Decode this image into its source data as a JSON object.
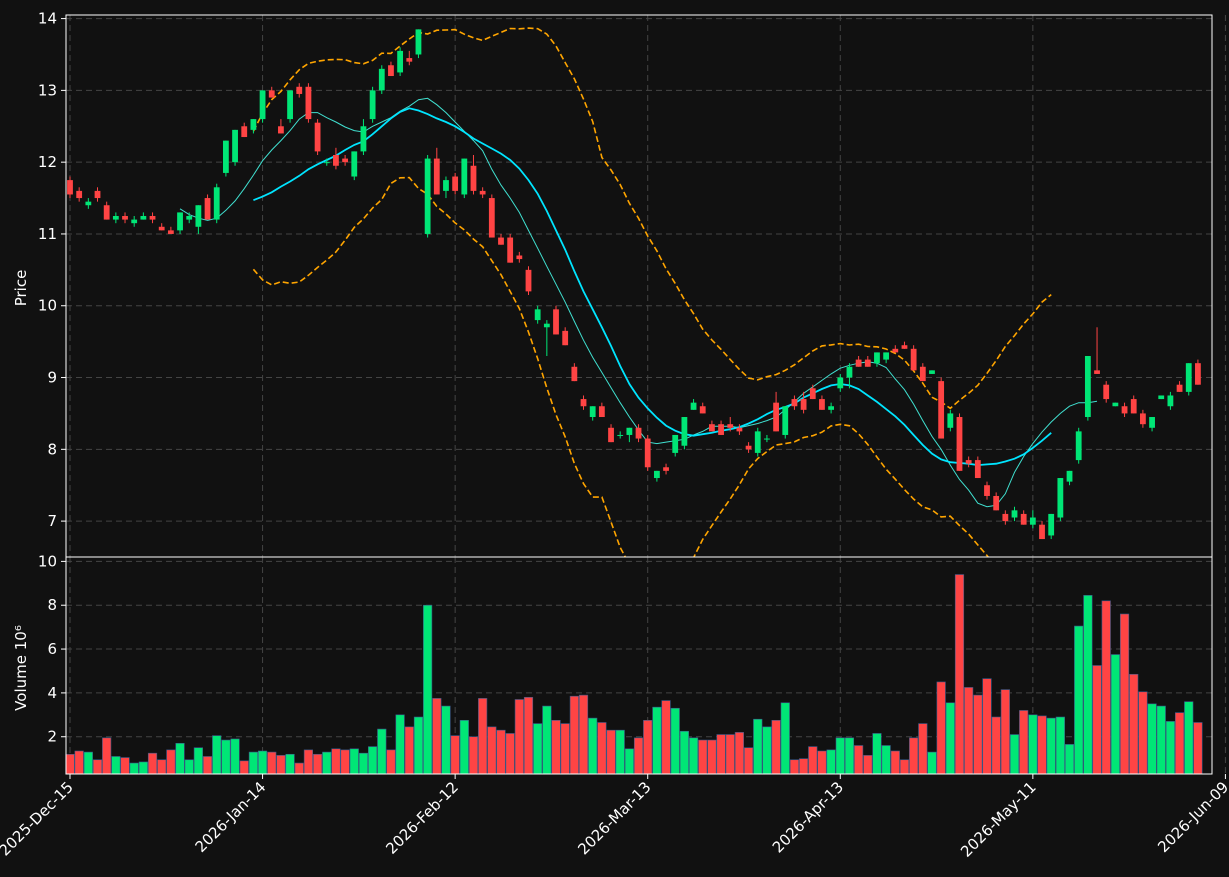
{
  "chart_data": {
    "type": "candlestick",
    "colors": {
      "background": "#111111",
      "up": "#00e676",
      "down": "#ff4444",
      "ma_fast": "#40e0d0",
      "ma_slow": "#00e5ff",
      "bands": "#ffa500",
      "grid": "#444444",
      "axis": "#ffffff"
    },
    "price_panel": {
      "ylabel": "Price",
      "ylim": [
        6.5,
        14.05
      ],
      "yticks": [
        7,
        8,
        9,
        10,
        11,
        12,
        13,
        14
      ],
      "grid": true
    },
    "volume_panel": {
      "ylabel": "Volume  10⁶",
      "ylim": [
        0.3,
        10.2
      ],
      "yticks": [
        2,
        4,
        6,
        8,
        10
      ],
      "grid": true
    },
    "x": {
      "start_date": "2025-12-15",
      "end_date": "2026-06-09",
      "tick_labels": [
        "2025-Dec-15",
        "2026-Jan-14",
        "2026-Feb-12",
        "2026-Mar-13",
        "2026-Apr-13",
        "2026-May-11",
        "2026-Jun-09"
      ],
      "tick_indices": [
        0,
        21,
        42,
        63,
        84,
        105,
        126
      ]
    },
    "candles": [
      [
        11.75,
        11.8,
        11.5,
        11.55,
        1.2
      ],
      [
        11.6,
        11.65,
        11.45,
        11.5,
        1.35
      ],
      [
        11.4,
        11.5,
        11.35,
        11.45,
        1.3
      ],
      [
        11.6,
        11.65,
        11.45,
        11.5,
        0.95
      ],
      [
        11.4,
        11.45,
        11.2,
        11.2,
        1.95
      ],
      [
        11.2,
        11.3,
        11.15,
        11.25,
        1.1
      ],
      [
        11.25,
        11.3,
        11.15,
        11.2,
        1.05
      ],
      [
        11.15,
        11.25,
        11.1,
        11.2,
        0.8
      ],
      [
        11.2,
        11.3,
        11.2,
        11.25,
        0.85
      ],
      [
        11.25,
        11.3,
        11.15,
        11.2,
        1.25
      ],
      [
        11.1,
        11.15,
        11.05,
        11.05,
        0.95
      ],
      [
        11.05,
        11.1,
        11.0,
        11.0,
        1.4
      ],
      [
        11.05,
        11.3,
        11.0,
        11.3,
        1.7
      ],
      [
        11.2,
        11.3,
        11.15,
        11.25,
        0.95
      ],
      [
        11.1,
        11.4,
        11.0,
        11.4,
        1.5
      ],
      [
        11.5,
        11.55,
        11.2,
        11.2,
        1.1
      ],
      [
        11.2,
        11.7,
        11.15,
        11.65,
        2.05
      ],
      [
        11.85,
        12.3,
        11.8,
        12.3,
        1.85
      ],
      [
        12.0,
        12.45,
        11.95,
        12.45,
        1.9
      ],
      [
        12.5,
        12.55,
        12.35,
        12.35,
        0.9
      ],
      [
        12.45,
        12.6,
        12.4,
        12.6,
        1.3
      ],
      [
        12.6,
        13.0,
        12.55,
        13.0,
        1.35
      ],
      [
        13.0,
        13.05,
        12.9,
        12.9,
        1.3
      ],
      [
        12.5,
        12.6,
        12.4,
        12.4,
        1.15
      ],
      [
        12.6,
        13.0,
        12.55,
        13.0,
        1.2
      ],
      [
        13.05,
        13.1,
        12.9,
        12.95,
        0.8
      ],
      [
        13.05,
        13.1,
        12.55,
        12.6,
        1.4
      ],
      [
        12.55,
        12.6,
        12.1,
        12.15,
        1.2
      ],
      [
        12.0,
        12.05,
        11.95,
        12.0,
        1.3
      ],
      [
        12.1,
        12.2,
        11.9,
        11.95,
        1.45
      ],
      [
        12.05,
        12.1,
        11.95,
        12.0,
        1.4
      ],
      [
        11.8,
        12.15,
        11.75,
        12.15,
        1.45
      ],
      [
        12.15,
        12.6,
        12.1,
        12.5,
        1.25
      ],
      [
        12.6,
        13.05,
        12.55,
        13.0,
        1.55
      ],
      [
        13.0,
        13.35,
        12.95,
        13.3,
        2.35
      ],
      [
        13.35,
        13.4,
        13.2,
        13.2,
        1.4
      ],
      [
        13.25,
        13.6,
        13.2,
        13.55,
        3.0
      ],
      [
        13.45,
        13.55,
        13.35,
        13.4,
        2.45
      ],
      [
        13.5,
        13.85,
        13.45,
        13.85,
        2.9
      ],
      [
        11.0,
        12.1,
        10.95,
        12.05,
        8.0
      ],
      [
        12.05,
        12.2,
        11.55,
        11.55,
        3.75
      ],
      [
        11.6,
        11.8,
        11.5,
        11.75,
        3.4
      ],
      [
        11.8,
        11.85,
        11.55,
        11.6,
        2.05
      ],
      [
        11.55,
        12.05,
        11.5,
        12.05,
        2.75
      ],
      [
        11.95,
        12.1,
        11.55,
        11.6,
        2.0
      ],
      [
        11.6,
        11.65,
        11.5,
        11.55,
        3.75
      ],
      [
        11.5,
        11.55,
        10.95,
        10.95,
        2.45
      ],
      [
        10.95,
        11.0,
        10.85,
        10.85,
        2.3
      ],
      [
        10.95,
        11.0,
        10.6,
        10.6,
        2.15
      ],
      [
        10.7,
        10.75,
        10.6,
        10.65,
        3.7
      ],
      [
        10.5,
        10.55,
        10.15,
        10.2,
        3.8
      ],
      [
        9.8,
        10.0,
        9.75,
        9.95,
        2.6
      ],
      [
        9.7,
        9.8,
        9.3,
        9.75,
        3.4
      ],
      [
        9.95,
        10.0,
        9.6,
        9.6,
        2.75
      ],
      [
        9.65,
        9.7,
        9.45,
        9.45,
        2.6
      ],
      [
        9.15,
        9.2,
        8.95,
        8.95,
        3.85
      ],
      [
        8.7,
        8.75,
        8.55,
        8.6,
        3.9
      ],
      [
        8.45,
        8.6,
        8.4,
        8.6,
        2.85
      ],
      [
        8.6,
        8.65,
        8.45,
        8.45,
        2.65
      ],
      [
        8.3,
        8.35,
        8.1,
        8.1,
        2.3
      ],
      [
        8.2,
        8.25,
        8.15,
        8.2,
        2.3
      ],
      [
        8.2,
        8.3,
        8.1,
        8.3,
        1.45
      ],
      [
        8.3,
        8.35,
        8.1,
        8.15,
        1.95
      ],
      [
        8.15,
        8.2,
        7.7,
        7.75,
        2.75
      ],
      [
        7.6,
        7.7,
        7.55,
        7.7,
        3.35
      ],
      [
        7.75,
        7.8,
        7.65,
        7.7,
        3.65
      ],
      [
        7.95,
        8.2,
        7.9,
        8.2,
        3.3
      ],
      [
        8.05,
        8.45,
        8.0,
        8.45,
        2.25
      ],
      [
        8.55,
        8.7,
        8.55,
        8.65,
        1.95
      ],
      [
        8.6,
        8.65,
        8.5,
        8.5,
        1.85
      ],
      [
        8.35,
        8.4,
        8.25,
        8.25,
        1.85
      ],
      [
        8.35,
        8.4,
        8.2,
        8.2,
        2.1
      ],
      [
        8.35,
        8.45,
        8.25,
        8.3,
        2.1
      ],
      [
        8.3,
        8.35,
        8.2,
        8.25,
        2.2
      ],
      [
        8.05,
        8.1,
        7.95,
        8.0,
        1.5
      ],
      [
        7.95,
        8.3,
        7.9,
        8.25,
        2.8
      ],
      [
        8.15,
        8.2,
        8.1,
        8.15,
        2.45
      ],
      [
        8.65,
        8.8,
        8.25,
        8.25,
        2.75
      ],
      [
        8.2,
        8.6,
        8.15,
        8.6,
        3.55
      ],
      [
        8.7,
        8.75,
        8.55,
        8.6,
        0.95
      ],
      [
        8.7,
        8.8,
        8.5,
        8.55,
        1.0
      ],
      [
        8.85,
        8.9,
        8.7,
        8.7,
        1.55
      ],
      [
        8.7,
        8.75,
        8.55,
        8.55,
        1.35
      ],
      [
        8.55,
        8.65,
        8.5,
        8.6,
        1.4
      ],
      [
        8.85,
        9.05,
        8.8,
        9.0,
        1.95
      ],
      [
        9.0,
        9.2,
        8.85,
        9.15,
        1.95
      ],
      [
        9.25,
        9.3,
        9.15,
        9.15,
        1.6
      ],
      [
        9.25,
        9.3,
        9.15,
        9.15,
        1.15
      ],
      [
        9.2,
        9.35,
        9.15,
        9.35,
        2.15
      ],
      [
        9.25,
        9.35,
        9.2,
        9.35,
        1.6
      ],
      [
        9.4,
        9.45,
        9.35,
        9.35,
        1.35
      ],
      [
        9.45,
        9.5,
        9.4,
        9.4,
        0.95
      ],
      [
        9.4,
        9.45,
        9.1,
        9.1,
        1.95
      ],
      [
        9.15,
        9.2,
        8.95,
        8.95,
        2.6
      ],
      [
        9.05,
        9.1,
        9.05,
        9.1,
        1.3
      ],
      [
        8.95,
        9.0,
        8.15,
        8.15,
        4.5
      ],
      [
        8.3,
        8.55,
        8.25,
        8.5,
        3.55
      ],
      [
        8.45,
        8.5,
        7.7,
        7.7,
        9.4
      ],
      [
        7.85,
        7.9,
        7.75,
        7.8,
        4.25
      ],
      [
        7.85,
        7.9,
        7.6,
        7.6,
        3.9
      ],
      [
        7.5,
        7.55,
        7.3,
        7.35,
        4.65
      ],
      [
        7.35,
        7.4,
        7.15,
        7.15,
        2.9
      ],
      [
        7.1,
        7.15,
        6.95,
        7.0,
        4.15
      ],
      [
        7.05,
        7.2,
        7.0,
        7.15,
        2.1
      ],
      [
        7.1,
        7.15,
        6.95,
        6.95,
        3.2
      ],
      [
        6.95,
        7.15,
        6.9,
        7.05,
        3.0
      ],
      [
        6.95,
        7.0,
        6.75,
        6.75,
        2.95
      ],
      [
        6.8,
        7.1,
        6.75,
        7.1,
        2.85
      ],
      [
        7.05,
        7.6,
        7.0,
        7.6,
        2.9
      ],
      [
        7.55,
        7.7,
        7.5,
        7.7,
        1.65
      ],
      [
        7.85,
        8.3,
        7.8,
        8.25,
        7.05
      ],
      [
        8.45,
        9.3,
        8.4,
        9.3,
        8.45
      ],
      [
        9.1,
        9.7,
        9.05,
        9.05,
        5.25
      ],
      [
        8.9,
        8.95,
        8.65,
        8.7,
        8.2
      ],
      [
        8.6,
        8.65,
        8.6,
        8.65,
        5.75
      ],
      [
        8.6,
        8.65,
        8.45,
        8.5,
        7.6
      ],
      [
        8.7,
        8.75,
        8.5,
        8.5,
        4.85
      ],
      [
        8.5,
        8.55,
        8.3,
        8.35,
        4.05
      ],
      [
        8.3,
        8.45,
        8.25,
        8.45,
        3.5
      ],
      [
        8.7,
        8.75,
        8.7,
        8.75,
        3.4
      ],
      [
        8.6,
        8.8,
        8.55,
        8.75,
        2.7
      ],
      [
        8.9,
        8.95,
        8.8,
        8.8,
        3.1
      ],
      [
        8.8,
        9.2,
        8.75,
        9.2,
        3.6
      ],
      [
        9.2,
        9.25,
        8.9,
        8.9,
        2.65
      ]
    ],
    "ma_fast": [
      null,
      null,
      null,
      null,
      null,
      null,
      null,
      null,
      null,
      null,
      null,
      null,
      11.35,
      11.27,
      11.22,
      11.19,
      11.22,
      11.33,
      11.46,
      11.63,
      11.82,
      12.02,
      12.17,
      12.3,
      12.44,
      12.6,
      12.69,
      12.69,
      12.62,
      12.56,
      12.49,
      12.44,
      12.42,
      12.5,
      12.56,
      12.62,
      12.71,
      12.78,
      12.87,
      12.89,
      12.8,
      12.69,
      12.56,
      12.43,
      12.3,
      12.16,
      11.9,
      11.68,
      11.5,
      11.3,
      11.05,
      10.8,
      10.55,
      10.3,
      10.05,
      9.78,
      9.52,
      9.28,
      9.07,
      8.86,
      8.65,
      8.45,
      8.27,
      8.1,
      8.08,
      8.1,
      8.12,
      8.14,
      8.2,
      8.25,
      8.32,
      8.32,
      8.32,
      8.3,
      8.33,
      8.36,
      8.4,
      8.45,
      8.55,
      8.66,
      8.78,
      8.87,
      8.96,
      9.05,
      9.13,
      9.17,
      9.2,
      9.22,
      9.2,
      9.14,
      8.98,
      8.83,
      8.63,
      8.4,
      8.18,
      8.0,
      7.78,
      7.58,
      7.43,
      7.25,
      7.2,
      7.22,
      7.38,
      7.68,
      7.9,
      8.08,
      8.24,
      8.38,
      8.5,
      8.6,
      8.65,
      8.65,
      8.67
    ],
    "ma_slow": [
      null,
      null,
      null,
      null,
      null,
      null,
      null,
      null,
      null,
      null,
      null,
      null,
      null,
      null,
      null,
      null,
      null,
      null,
      null,
      null,
      11.47,
      11.52,
      11.58,
      11.66,
      11.73,
      11.81,
      11.9,
      11.97,
      12.03,
      12.09,
      12.17,
      12.24,
      12.29,
      12.39,
      12.5,
      12.61,
      12.7,
      12.75,
      12.72,
      12.67,
      12.61,
      12.56,
      12.5,
      12.42,
      12.33,
      12.26,
      12.19,
      12.12,
      12.03,
      11.91,
      11.75,
      11.56,
      11.32,
      11.05,
      10.78,
      10.48,
      10.2,
      9.95,
      9.7,
      9.44,
      9.16,
      8.91,
      8.72,
      8.57,
      8.44,
      8.33,
      8.26,
      8.21,
      8.19,
      8.21,
      8.23,
      8.26,
      8.28,
      8.31,
      8.36,
      8.42,
      8.49,
      8.55,
      8.59,
      8.64,
      8.72,
      8.78,
      8.84,
      8.89,
      8.91,
      8.89,
      8.84,
      8.75,
      8.66,
      8.56,
      8.46,
      8.34,
      8.2,
      8.06,
      7.94,
      7.86,
      7.82,
      7.81,
      7.8,
      7.78,
      7.79,
      7.8,
      7.83,
      7.87,
      7.93,
      8.02,
      8.12,
      8.23
    ]
  }
}
